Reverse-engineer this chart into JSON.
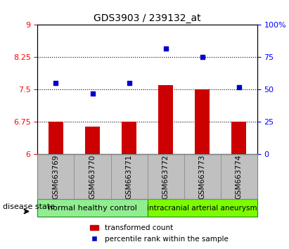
{
  "title": "GDS3903 / 239132_at",
  "samples": [
    "GSM663769",
    "GSM663770",
    "GSM663771",
    "GSM663772",
    "GSM663773",
    "GSM663774"
  ],
  "transformed_count": [
    6.75,
    6.65,
    6.75,
    7.6,
    7.5,
    6.75
  ],
  "percentile_rank": [
    55,
    47,
    55,
    82,
    75,
    52
  ],
  "ylim_left": [
    6,
    9
  ],
  "ylim_right": [
    0,
    100
  ],
  "yticks_left": [
    6,
    6.75,
    7.5,
    8.25,
    9
  ],
  "yticks_right": [
    0,
    25,
    50,
    75,
    100
  ],
  "ytick_labels_left": [
    "6",
    "6.75",
    "7.5",
    "8.25",
    "9"
  ],
  "ytick_labels_right": [
    "0",
    "25",
    "50",
    "75",
    "100%"
  ],
  "group1_label": "normal healthy control",
  "group2_label": "intracranial arterial aneurysm",
  "group1_indices": [
    0,
    1,
    2
  ],
  "group2_indices": [
    3,
    4,
    5
  ],
  "group1_color": "#90EE90",
  "group2_color": "#7CFC00",
  "bar_color": "#CC0000",
  "marker_color": "#0000CC",
  "disease_state_label": "disease state",
  "legend_bar_label": "transformed count",
  "legend_marker_label": "percentile rank within the sample",
  "dotted_line_color": "#000000",
  "xlabel_area_color": "#C0C0C0",
  "bar_width": 0.4
}
